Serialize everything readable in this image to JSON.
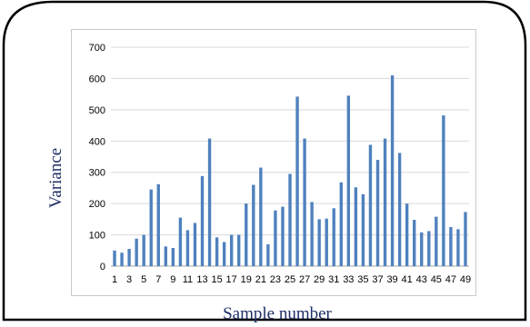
{
  "colors": {
    "bar": "#4f81bd",
    "grid": "#d9d9d9",
    "axis_title": "#1f2f66",
    "frame": "#000000"
  },
  "chart_data": {
    "type": "bar",
    "title": "",
    "xlabel": "Sample number",
    "ylabel": "Variance",
    "ylim": [
      0,
      700
    ],
    "y_ticks": [
      0,
      100,
      200,
      300,
      400,
      500,
      600,
      700
    ],
    "grid": true,
    "legend": "none",
    "x_tick_labels": [
      "1",
      "3",
      "5",
      "7",
      "9",
      "11",
      "13",
      "15",
      "17",
      "19",
      "21",
      "23",
      "25",
      "27",
      "29",
      "31",
      "33",
      "35",
      "37",
      "39",
      "41",
      "43",
      "45",
      "47",
      "49"
    ],
    "categories": [
      1,
      2,
      3,
      4,
      5,
      6,
      7,
      8,
      9,
      10,
      11,
      12,
      13,
      14,
      15,
      16,
      17,
      18,
      19,
      20,
      21,
      22,
      23,
      24,
      25,
      26,
      27,
      28,
      29,
      30,
      31,
      32,
      33,
      34,
      35,
      36,
      37,
      38,
      39,
      40,
      41,
      42,
      43,
      44,
      45,
      46,
      47,
      48,
      49
    ],
    "values": [
      50,
      43,
      55,
      88,
      100,
      245,
      262,
      63,
      58,
      155,
      115,
      138,
      288,
      408,
      92,
      77,
      100,
      100,
      200,
      260,
      315,
      70,
      178,
      190,
      295,
      542,
      408,
      205,
      150,
      152,
      185,
      268,
      545,
      252,
      230,
      388,
      340,
      408,
      610,
      362,
      200,
      148,
      108,
      112,
      158,
      482,
      125,
      118,
      173
    ]
  }
}
